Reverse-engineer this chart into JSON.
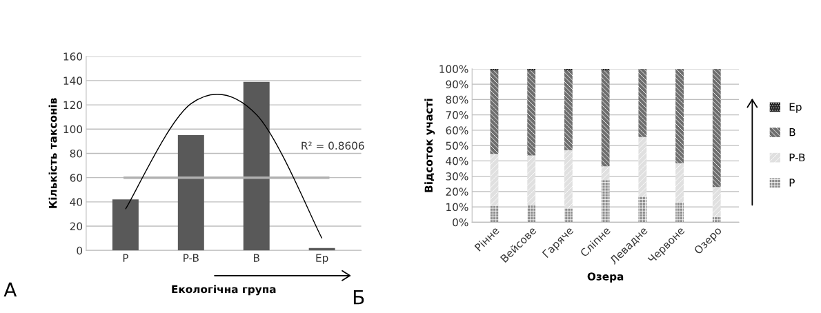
{
  "chart_data": [
    {
      "type": "bar",
      "xlabel": "Екологічна група",
      "ylabel": "Кількість таксонів",
      "categories": [
        "P",
        "P-B",
        "B",
        "Ep"
      ],
      "series": [
        {
          "type": "bar",
          "color": "#595959",
          "values": [
            42,
            95,
            139,
            2
          ]
        },
        {
          "type": "line",
          "color": "#000000",
          "values": [
            34,
            121,
            112,
            10
          ]
        }
      ],
      "ylim": [
        0,
        160
      ],
      "yticks": [
        0,
        20,
        40,
        60,
        80,
        100,
        120,
        140,
        160
      ],
      "grid": "y",
      "ref_lines": [
        {
          "axis": "y",
          "value": 60,
          "color": "#b0b0b0"
        }
      ],
      "annotations": [
        "R² = 0.8606",
        "А"
      ]
    },
    {
      "type": "bar",
      "stacked": true,
      "xlabel": "Озера",
      "ylabel": "Відсоток участі",
      "categories": [
        "Рінне",
        "Вейсове",
        "Гаряче",
        "Сліпне",
        "Левадне",
        "Червоне",
        "Озеро"
      ],
      "series": [
        {
          "name": "P",
          "color": "#8c8c8c",
          "values": [
            10.5,
            11.5,
            9,
            27.5,
            17,
            13,
            3.5
          ]
        },
        {
          "name": "P-B",
          "color": "#e0e0e0",
          "values": [
            34,
            32,
            38,
            9,
            38.5,
            25.5,
            19.5
          ]
        },
        {
          "name": "B",
          "color": "#6e6e6e",
          "values": [
            54.5,
            55.5,
            52,
            62.5,
            44.5,
            61.5,
            77
          ]
        },
        {
          "name": "Ep",
          "color": "#262626",
          "values": [
            1,
            1,
            1,
            1,
            0,
            0,
            0
          ]
        }
      ],
      "ylim": [
        0,
        100
      ],
      "yticks": [
        {
          "value": 0,
          "label": "0%"
        },
        {
          "value": 10,
          "label": "10%"
        },
        {
          "value": 20,
          "label": "20%"
        },
        {
          "value": 30,
          "label": "30%"
        },
        {
          "value": 40,
          "label": "40%"
        },
        {
          "value": 50,
          "label": "50%"
        },
        {
          "value": 60,
          "label": "60%"
        },
        {
          "value": 70,
          "label": "70%"
        },
        {
          "value": 80,
          "label": "80%"
        },
        {
          "value": 90,
          "label": "90%"
        },
        {
          "value": 100,
          "label": "100%"
        }
      ],
      "grid": "y",
      "legend": "right",
      "annotations": [
        "Б"
      ]
    }
  ]
}
